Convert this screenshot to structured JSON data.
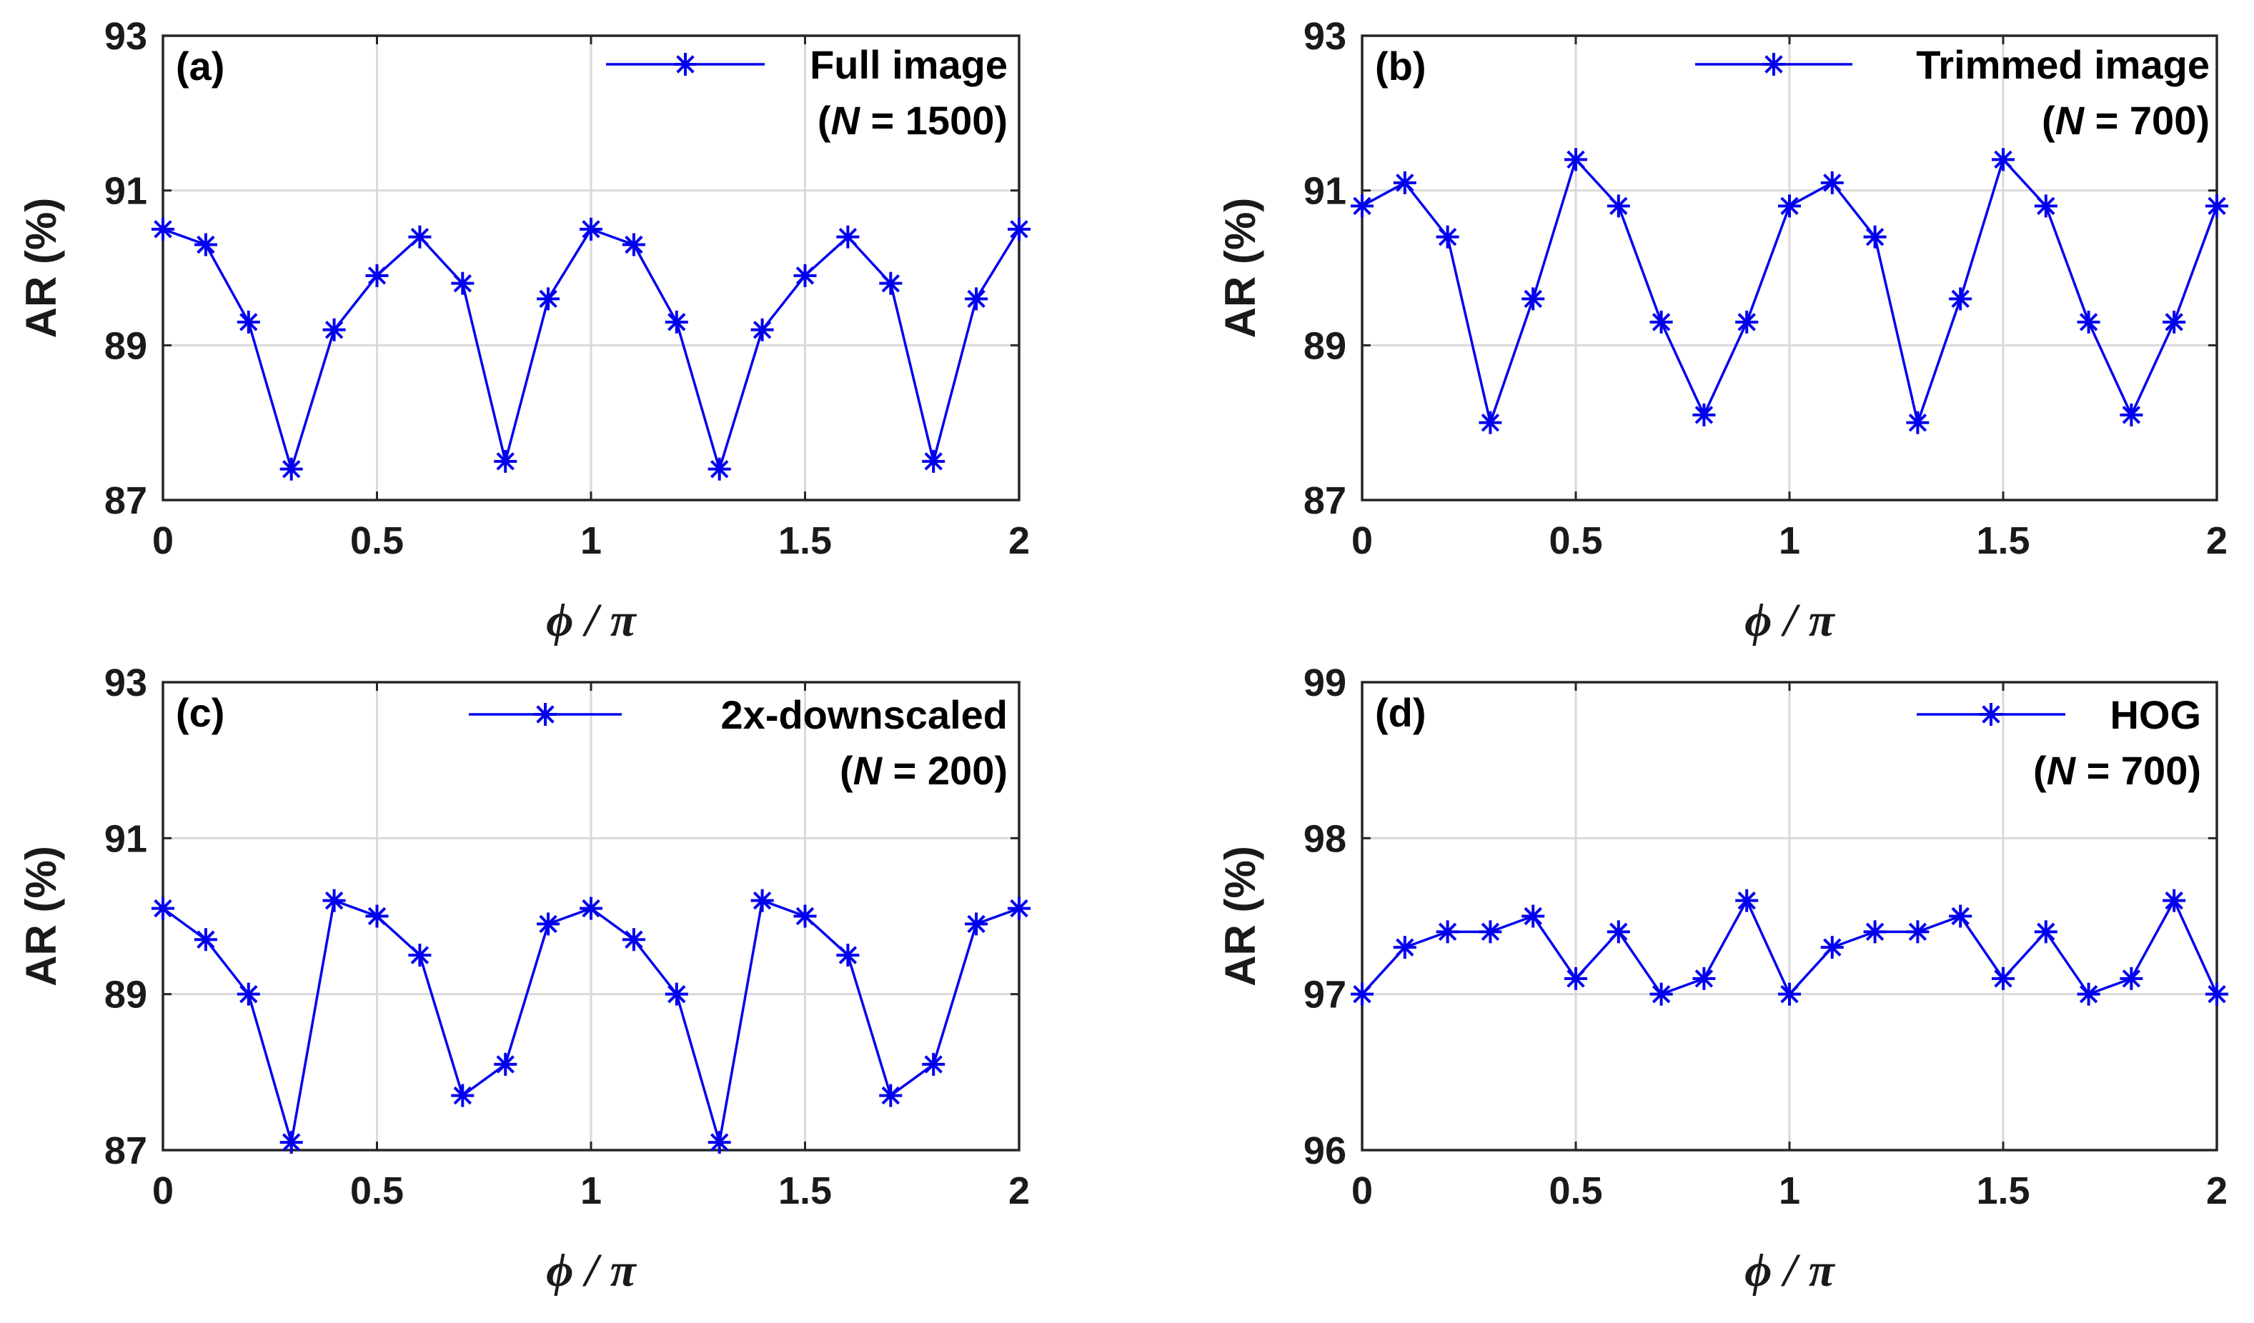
{
  "figure": {
    "line_color": "#0000ee",
    "grid_color": "#d9d9d9",
    "axis_color": "#262626"
  },
  "chart_data": [
    {
      "panel": "(a)",
      "type": "line",
      "title": "",
      "xlabel": "ϕ / π",
      "ylabel": "AR (%)",
      "xlim": [
        0,
        2
      ],
      "ylim": [
        87,
        93
      ],
      "xticks": [
        "0",
        "0.5",
        "1",
        "1.5",
        "2"
      ],
      "xtick_values": [
        0,
        0.5,
        1,
        1.5,
        2
      ],
      "yticks": [
        "87",
        "89",
        "91",
        "93"
      ],
      "ytick_values": [
        87,
        89,
        91,
        93
      ],
      "legend": {
        "name": "Full image",
        "note_prefix": "(",
        "note_var": "N",
        "note_suffix": " = 1500)"
      },
      "x": [
        0,
        0.1,
        0.2,
        0.3,
        0.4,
        0.5,
        0.6,
        0.7,
        0.8,
        0.9,
        1.0,
        1.1,
        1.2,
        1.3,
        1.4,
        1.5,
        1.6,
        1.7,
        1.8,
        1.9,
        2.0
      ],
      "values": [
        90.5,
        90.3,
        89.3,
        87.4,
        89.2,
        89.9,
        90.4,
        89.8,
        87.5,
        89.6,
        90.5,
        90.3,
        89.3,
        87.4,
        89.2,
        89.9,
        90.4,
        89.8,
        87.5,
        89.6,
        90.5
      ]
    },
    {
      "panel": "(b)",
      "type": "line",
      "title": "",
      "xlabel": "ϕ / π",
      "ylabel": "AR (%)",
      "xlim": [
        0,
        2
      ],
      "ylim": [
        87,
        93
      ],
      "xticks": [
        "0",
        "0.5",
        "1",
        "1.5",
        "2"
      ],
      "xtick_values": [
        0,
        0.5,
        1,
        1.5,
        2
      ],
      "yticks": [
        "87",
        "89",
        "91",
        "93"
      ],
      "ytick_values": [
        87,
        89,
        91,
        93
      ],
      "legend": {
        "name": "Trimmed image",
        "note_prefix": "(",
        "note_var": "N",
        "note_suffix": " = 700)"
      },
      "x": [
        0,
        0.1,
        0.2,
        0.3,
        0.4,
        0.5,
        0.6,
        0.7,
        0.8,
        0.9,
        1.0,
        1.1,
        1.2,
        1.3,
        1.4,
        1.5,
        1.6,
        1.7,
        1.8,
        1.9,
        2.0
      ],
      "values": [
        90.8,
        91.1,
        90.4,
        88.0,
        89.6,
        91.4,
        90.8,
        89.3,
        88.1,
        89.3,
        90.8,
        91.1,
        90.4,
        88.0,
        89.6,
        91.4,
        90.8,
        89.3,
        88.1,
        89.3,
        90.8
      ]
    },
    {
      "panel": "(c)",
      "type": "line",
      "title": "",
      "xlabel": "ϕ / π",
      "ylabel": "AR (%)",
      "xlim": [
        0,
        2
      ],
      "ylim": [
        87,
        93
      ],
      "xticks": [
        "0",
        "0.5",
        "1",
        "1.5",
        "2"
      ],
      "xtick_values": [
        0,
        0.5,
        1,
        1.5,
        2
      ],
      "yticks": [
        "87",
        "89",
        "91",
        "93"
      ],
      "ytick_values": [
        87,
        89,
        91,
        93
      ],
      "legend": {
        "name": "2x-downscaled",
        "note_prefix": "(",
        "note_var": "N",
        "note_suffix": " = 200)"
      },
      "x": [
        0,
        0.1,
        0.2,
        0.3,
        0.4,
        0.5,
        0.6,
        0.7,
        0.8,
        0.9,
        1.0,
        1.1,
        1.2,
        1.3,
        1.4,
        1.5,
        1.6,
        1.7,
        1.8,
        1.9,
        2.0
      ],
      "values": [
        90.1,
        89.7,
        89.0,
        87.1,
        90.2,
        90.0,
        89.5,
        87.7,
        88.1,
        89.9,
        90.1,
        89.7,
        89.0,
        87.1,
        90.2,
        90.0,
        89.5,
        87.7,
        88.1,
        89.9,
        90.1
      ]
    },
    {
      "panel": "(d)",
      "type": "line",
      "title": "",
      "xlabel": "ϕ / π",
      "ylabel": "AR (%)",
      "xlim": [
        0,
        2
      ],
      "ylim": [
        96,
        99
      ],
      "xticks": [
        "0",
        "0.5",
        "1",
        "1.5",
        "2"
      ],
      "xtick_values": [
        0,
        0.5,
        1,
        1.5,
        2
      ],
      "yticks": [
        "96",
        "97",
        "98",
        "99"
      ],
      "ytick_values": [
        96,
        97,
        98,
        99
      ],
      "legend": {
        "name": "HOG",
        "note_prefix": "(",
        "note_var": "N",
        "note_suffix": " = 700)"
      },
      "x": [
        0,
        0.1,
        0.2,
        0.3,
        0.4,
        0.5,
        0.6,
        0.7,
        0.8,
        0.9,
        1.0,
        1.1,
        1.2,
        1.3,
        1.4,
        1.5,
        1.6,
        1.7,
        1.8,
        1.9,
        2.0
      ],
      "values": [
        97.0,
        97.3,
        97.4,
        97.4,
        97.5,
        97.1,
        97.4,
        97.0,
        97.1,
        97.6,
        97.0,
        97.3,
        97.4,
        97.4,
        97.5,
        97.1,
        97.4,
        97.0,
        97.1,
        97.6,
        97.0
      ]
    }
  ]
}
